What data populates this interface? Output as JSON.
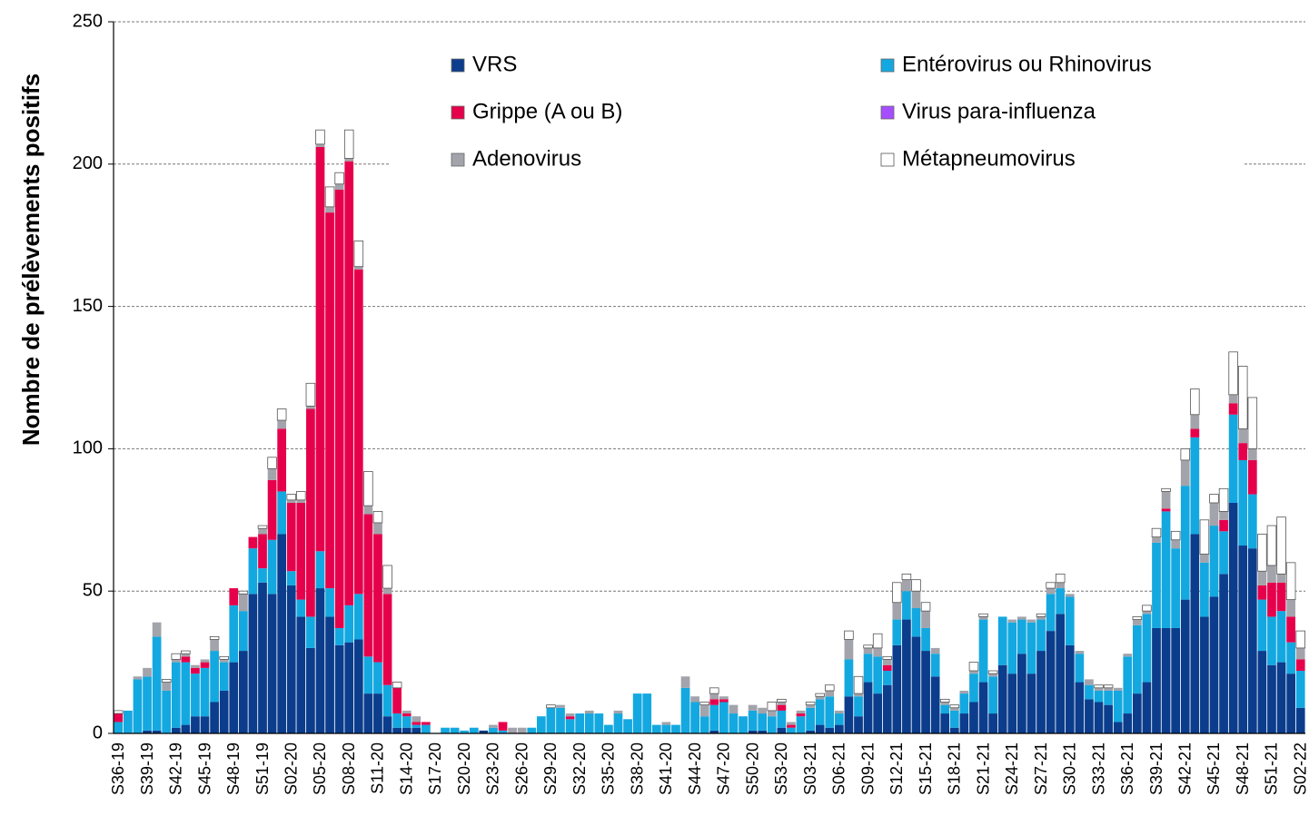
{
  "chart_data": {
    "type": "bar",
    "stacked": true,
    "y_label": "Nombre de prélèvements positifs",
    "categories": [
      "S36-19",
      null,
      null,
      "S39-19",
      null,
      null,
      "S42-19",
      null,
      null,
      "S45-19",
      null,
      null,
      "S48-19",
      null,
      null,
      "S51-19",
      null,
      null,
      "S02-20",
      null,
      null,
      "S05-20",
      null,
      null,
      "S08-20",
      null,
      null,
      "S11-20",
      null,
      null,
      "S14-20",
      null,
      null,
      "S17-20",
      null,
      null,
      "S20-20",
      null,
      null,
      "S23-20",
      null,
      null,
      "S26-20",
      null,
      null,
      "S29-20",
      null,
      null,
      "S32-20",
      null,
      null,
      "S35-20",
      null,
      null,
      "S38-20",
      null,
      null,
      "S41-20",
      null,
      null,
      "S44-20",
      null,
      null,
      "S47-20",
      null,
      null,
      "S50-20",
      null,
      null,
      "S53-20",
      null,
      null,
      "S03-21",
      null,
      null,
      "S06-21",
      null,
      null,
      "S09-21",
      null,
      null,
      "S12-21",
      null,
      null,
      "S15-21",
      null,
      null,
      "S18-21",
      null,
      null,
      "S21-21",
      null,
      null,
      "S24-21",
      null,
      null,
      "S27-21",
      null,
      null,
      "S30-21",
      null,
      null,
      "S33-21",
      null,
      null,
      "S36-21",
      null,
      null,
      "S39-21",
      null,
      null,
      "S42-21",
      null,
      null,
      "S45-21",
      null,
      null,
      "S48-21",
      null,
      null,
      "S51-21",
      null,
      null,
      "S02-22"
    ],
    "series": [
      {
        "name": "VRS",
        "color": "#0b3d8c",
        "values": [
          0,
          0,
          0,
          1,
          1,
          0,
          2,
          3,
          6,
          6,
          11,
          15,
          25,
          29,
          49,
          53,
          49,
          70,
          52,
          41,
          30,
          51,
          41,
          31,
          32,
          33,
          14,
          14,
          6,
          2,
          2,
          2,
          0,
          0,
          0,
          0,
          0,
          0,
          1,
          0,
          0,
          0,
          0,
          0,
          0,
          0,
          0,
          0,
          0,
          0,
          0,
          0,
          0,
          0,
          0,
          0,
          0,
          0,
          0,
          0,
          0,
          0,
          1,
          0,
          0,
          0,
          1,
          1,
          0,
          2,
          0,
          0,
          1,
          3,
          2,
          3,
          13,
          6,
          18,
          14,
          17,
          31,
          40,
          34,
          29,
          20,
          7,
          2,
          7,
          11,
          18,
          7,
          24,
          21,
          28,
          21,
          29,
          36,
          42,
          31,
          18,
          12,
          11,
          10,
          4,
          7,
          14,
          18,
          37,
          37,
          37,
          47,
          70,
          41,
          48,
          56,
          81,
          66,
          65,
          29,
          24,
          25,
          21,
          9
        ]
      },
      {
        "name": "Entérovirus ou Rhinovirus",
        "color": "#14a8e0",
        "values": [
          4,
          8,
          19,
          19,
          33,
          15,
          23,
          22,
          15,
          17,
          18,
          10,
          20,
          14,
          16,
          5,
          19,
          15,
          5,
          6,
          11,
          13,
          10,
          6,
          13,
          16,
          13,
          11,
          11,
          5,
          4,
          1,
          3,
          0,
          2,
          2,
          1,
          2,
          0,
          2,
          1,
          0,
          0,
          2,
          6,
          9,
          9,
          5,
          7,
          7,
          7,
          3,
          7,
          5,
          14,
          14,
          3,
          3,
          3,
          16,
          11,
          6,
          9,
          11,
          7,
          6,
          7,
          6,
          6,
          6,
          2,
          6,
          8,
          9,
          11,
          4,
          13,
          7,
          10,
          13,
          5,
          9,
          10,
          10,
          8,
          8,
          3,
          6,
          7,
          10,
          22,
          13,
          17,
          18,
          12,
          18,
          11,
          13,
          9,
          17,
          10,
          5,
          4,
          5,
          11,
          20,
          24,
          24,
          30,
          41,
          28,
          40,
          34,
          19,
          25,
          15,
          31,
          30,
          19,
          18,
          17,
          18,
          11,
          13
        ]
      },
      {
        "name": "Grippe (A ou B)",
        "color": "#e6004c",
        "values": [
          3,
          0,
          0,
          0,
          0,
          0,
          0,
          2,
          2,
          2,
          0,
          0,
          6,
          0,
          4,
          12,
          21,
          22,
          24,
          34,
          73,
          142,
          132,
          154,
          156,
          114,
          50,
          45,
          32,
          9,
          1,
          1,
          1,
          0,
          0,
          0,
          0,
          0,
          0,
          0,
          3,
          0,
          0,
          0,
          0,
          0,
          0,
          1,
          0,
          0,
          0,
          0,
          0,
          0,
          0,
          0,
          0,
          0,
          0,
          0,
          0,
          0,
          2,
          1,
          0,
          0,
          0,
          0,
          0,
          2,
          1,
          1,
          0,
          0,
          0,
          0,
          0,
          0,
          0,
          0,
          2,
          0,
          0,
          0,
          0,
          0,
          0,
          0,
          0,
          0,
          0,
          0,
          0,
          0,
          0,
          0,
          0,
          0,
          0,
          0,
          0,
          0,
          0,
          0,
          0,
          0,
          0,
          0,
          0,
          1,
          0,
          0,
          3,
          0,
          0,
          4,
          4,
          6,
          12,
          5,
          12,
          10,
          9,
          4
        ]
      },
      {
        "name": "Virus para-influenza",
        "color": "#a64dff",
        "values": [
          0,
          0,
          0,
          0,
          0,
          0,
          0,
          0,
          0,
          0,
          0,
          0,
          0,
          0,
          0,
          0,
          0,
          0,
          0,
          0,
          0,
          0,
          0,
          0,
          0,
          0,
          0,
          0,
          0,
          0,
          0,
          0,
          0,
          0,
          0,
          0,
          0,
          0,
          0,
          0,
          0,
          0,
          0,
          0,
          0,
          0,
          0,
          0,
          0,
          0,
          0,
          0,
          0,
          0,
          0,
          0,
          0,
          0,
          0,
          0,
          0,
          0,
          0,
          0,
          0,
          0,
          0,
          0,
          0,
          0,
          0,
          0,
          0,
          0,
          0,
          0,
          0,
          0,
          0,
          0,
          0,
          0,
          0,
          0,
          0,
          0,
          0,
          0,
          0,
          0,
          0,
          0,
          0,
          0,
          0,
          0,
          0,
          0,
          0,
          0,
          0,
          0,
          0,
          0,
          0,
          0,
          0,
          0,
          0,
          0,
          0,
          0,
          0,
          0,
          0,
          0,
          0,
          0,
          0,
          0,
          0,
          0,
          0,
          0
        ]
      },
      {
        "name": "Adenovirus",
        "color": "#a3a3ab",
        "values": [
          0,
          0,
          1,
          3,
          5,
          3,
          1,
          1,
          1,
          1,
          4,
          1,
          0,
          6,
          0,
          2,
          4,
          3,
          1,
          1,
          1,
          1,
          2,
          2,
          1,
          1,
          3,
          4,
          2,
          0,
          1,
          2,
          0,
          0,
          0,
          0,
          0,
          0,
          0,
          1,
          0,
          2,
          2,
          0,
          0,
          0,
          1,
          1,
          0,
          1,
          0,
          0,
          1,
          0,
          0,
          0,
          0,
          1,
          0,
          4,
          2,
          4,
          2,
          1,
          3,
          0,
          2,
          2,
          2,
          1,
          1,
          1,
          1,
          1,
          2,
          1,
          7,
          1,
          2,
          3,
          2,
          6,
          4,
          6,
          6,
          2,
          1,
          1,
          1,
          1,
          1,
          1,
          0,
          1,
          1,
          1,
          1,
          2,
          2,
          1,
          1,
          2,
          1,
          1,
          1,
          1,
          2,
          1,
          2,
          6,
          3,
          9,
          5,
          3,
          8,
          3,
          3,
          5,
          4,
          5,
          6,
          3,
          6,
          4
        ]
      },
      {
        "name": "Métapneumovirus",
        "color": "#ffffff",
        "values": [
          1,
          0,
          0,
          0,
          0,
          1,
          2,
          1,
          0,
          0,
          1,
          1,
          0,
          1,
          0,
          1,
          4,
          4,
          2,
          3,
          8,
          5,
          7,
          4,
          10,
          9,
          12,
          4,
          8,
          2,
          0,
          0,
          0,
          0,
          0,
          0,
          0,
          0,
          0,
          0,
          0,
          0,
          0,
          0,
          0,
          1,
          0,
          0,
          0,
          0,
          0,
          0,
          0,
          0,
          0,
          0,
          0,
          0,
          0,
          0,
          0,
          1,
          2,
          0,
          0,
          0,
          0,
          0,
          3,
          1,
          0,
          0,
          1,
          1,
          2,
          0,
          3,
          6,
          1,
          5,
          1,
          7,
          2,
          4,
          3,
          0,
          1,
          1,
          0,
          3,
          1,
          1,
          0,
          0,
          0,
          0,
          1,
          2,
          3,
          0,
          0,
          0,
          1,
          1,
          0,
          0,
          1,
          2,
          3,
          1,
          3,
          4,
          9,
          12,
          3,
          8,
          15,
          22,
          18,
          13,
          14,
          20,
          13,
          6
        ]
      }
    ],
    "ylim": [
      0,
      250
    ],
    "yticks": [
      0,
      50,
      100,
      150,
      200,
      250
    ],
    "grid": true,
    "legend": "top"
  }
}
